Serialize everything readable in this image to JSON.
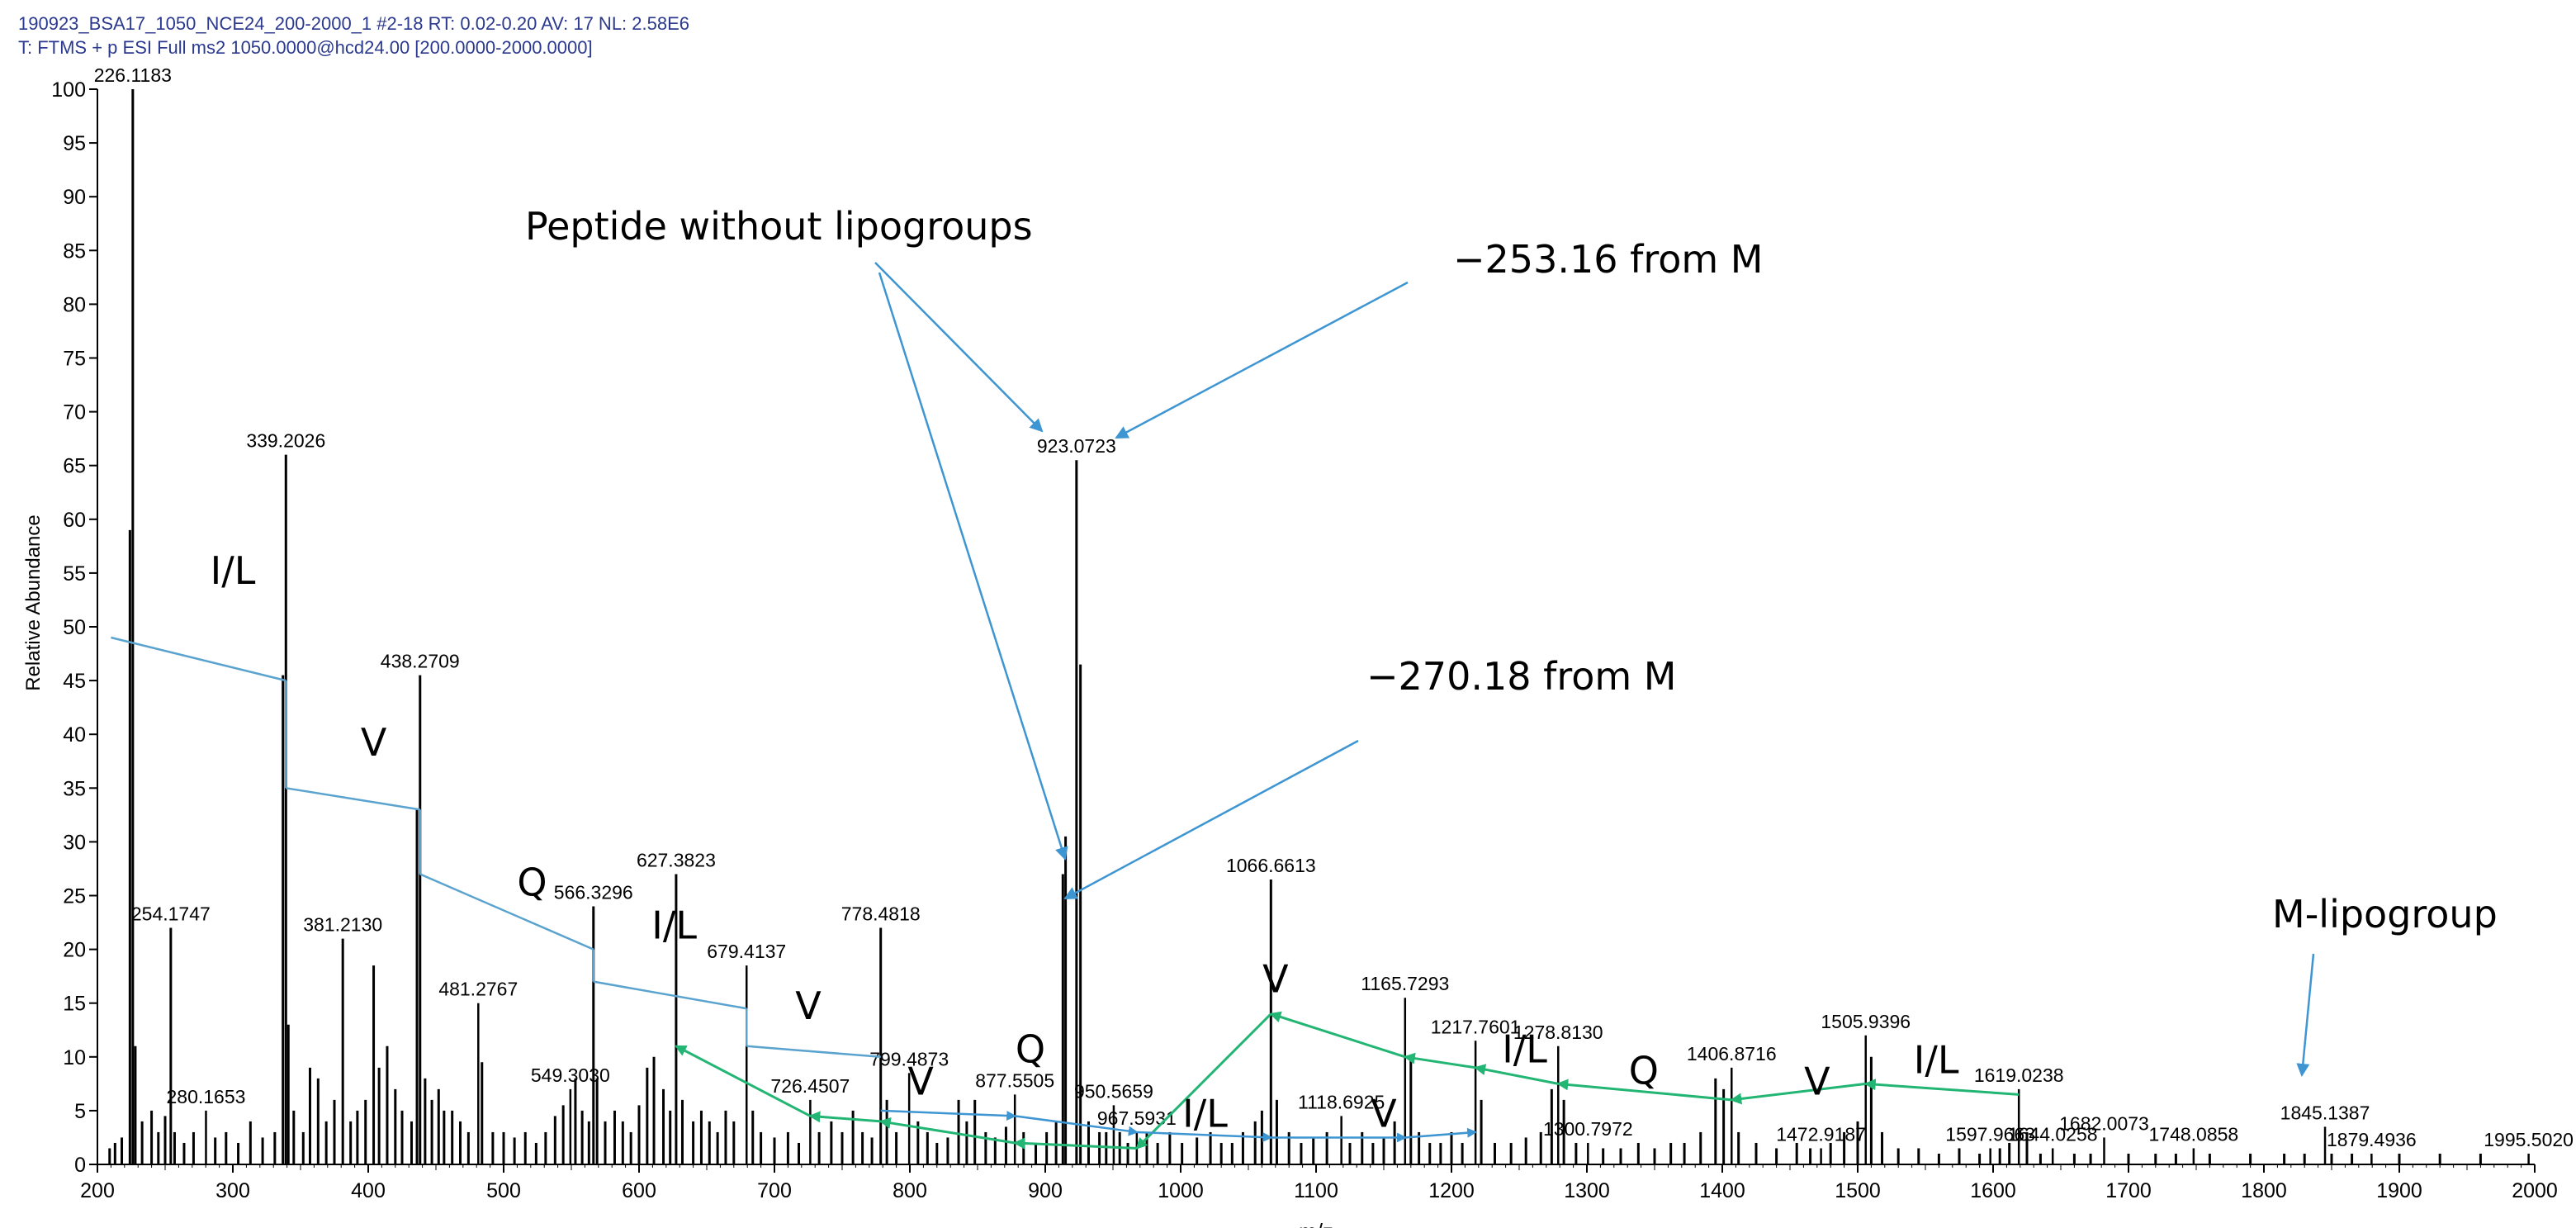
{
  "header": {
    "line1": "190923_BSA17_1050_NCE24_200-2000_1 #2-18   RT: 0.02-0.20   AV: 17   NL: 2.58E6",
    "line2": "T: FTMS + p ESI Full ms2 1050.0000@hcd24.00 [200.0000-2000.0000]"
  },
  "colors": {
    "stick": "#000000",
    "blue_line": "#5ba3cf",
    "blue_arrow": "#3d95d2",
    "green_arrow": "#22b573",
    "header_text": "#2b3a8f"
  },
  "chart_data": {
    "type": "bar",
    "title": "",
    "xlabel": "m/z",
    "ylabel": "Relative Abundance",
    "xlim": [
      200,
      2000
    ],
    "ylim": [
      0,
      100
    ],
    "xticks": [
      "200",
      "300",
      "400",
      "500",
      "600",
      "700",
      "800",
      "900",
      "1000",
      "1100",
      "1200",
      "1300",
      "1400",
      "1500",
      "1600",
      "1700",
      "1800",
      "1900",
      "2000"
    ],
    "yticks": [
      "0",
      "5",
      "10",
      "15",
      "20",
      "25",
      "30",
      "35",
      "40",
      "45",
      "50",
      "55",
      "60",
      "65",
      "70",
      "75",
      "80",
      "85",
      "90",
      "95",
      "100"
    ],
    "labeled_peaks": [
      {
        "mz": 226.1183,
        "label": "226.1183",
        "y": 100
      },
      {
        "mz": 254.1747,
        "label": "254.1747",
        "y": 22
      },
      {
        "mz": 280.1653,
        "label": "280.1653",
        "y": 5
      },
      {
        "mz": 339.2026,
        "label": "339.2026",
        "y": 66
      },
      {
        "mz": 381.213,
        "label": "381.2130",
        "y": 21
      },
      {
        "mz": 438.2709,
        "label": "438.2709",
        "y": 45.5
      },
      {
        "mz": 481.2767,
        "label": "481.2767",
        "y": 15
      },
      {
        "mz": 549.303,
        "label": "549.3030",
        "y": 7
      },
      {
        "mz": 566.3296,
        "label": "566.3296",
        "y": 24
      },
      {
        "mz": 627.3823,
        "label": "627.3823",
        "y": 27
      },
      {
        "mz": 679.4137,
        "label": "679.4137",
        "y": 18.5
      },
      {
        "mz": 726.4507,
        "label": "726.4507",
        "y": 6
      },
      {
        "mz": 778.4818,
        "label": "778.4818",
        "y": 22
      },
      {
        "mz": 799.4873,
        "label": "799.4873",
        "y": 8.5
      },
      {
        "mz": 877.5505,
        "label": "877.5505",
        "y": 6.5
      },
      {
        "mz": 923.0723,
        "label": "923.0723",
        "y": 65.5
      },
      {
        "mz": 950.5659,
        "label": "950.5659",
        "y": 5.5
      },
      {
        "mz": 967.5931,
        "label": "967.5931",
        "y": 3
      },
      {
        "mz": 1066.6613,
        "label": "1066.6613",
        "y": 26.5
      },
      {
        "mz": 1118.6925,
        "label": "1118.6925",
        "y": 4.5
      },
      {
        "mz": 1165.7293,
        "label": "1165.7293",
        "y": 15.5
      },
      {
        "mz": 1217.7601,
        "label": "1217.7601",
        "y": 11.5
      },
      {
        "mz": 1278.813,
        "label": "1278.8130",
        "y": 11
      },
      {
        "mz": 1300.7972,
        "label": "1300.7972",
        "y": 2
      },
      {
        "mz": 1406.8716,
        "label": "1406.8716",
        "y": 9
      },
      {
        "mz": 1472.9187,
        "label": "1472.9187",
        "y": 1.5
      },
      {
        "mz": 1505.9396,
        "label": "1505.9396",
        "y": 12
      },
      {
        "mz": 1597.9663,
        "label": "1597.9663",
        "y": 1.5
      },
      {
        "mz": 1619.0238,
        "label": "1619.0238",
        "y": 7
      },
      {
        "mz": 1644.0258,
        "label": "1644.0258",
        "y": 1.5
      },
      {
        "mz": 1682.0073,
        "label": "1682.0073",
        "y": 2.5
      },
      {
        "mz": 1748.0858,
        "label": "1748.0858",
        "y": 1.5
      },
      {
        "mz": 1845.1387,
        "label": "1845.1387",
        "y": 3.5
      },
      {
        "mz": 1879.4936,
        "label": "1879.4936",
        "y": 1
      },
      {
        "mz": 1995.502,
        "label": "1995.5020",
        "y": 1
      }
    ],
    "unlabeled_peaks": [
      {
        "mz": 209,
        "y": 1.5
      },
      {
        "mz": 213,
        "y": 2
      },
      {
        "mz": 218,
        "y": 2.5
      },
      {
        "mz": 224,
        "y": 59
      },
      {
        "mz": 228,
        "y": 11
      },
      {
        "mz": 233,
        "y": 4
      },
      {
        "mz": 240,
        "y": 5
      },
      {
        "mz": 245,
        "y": 3
      },
      {
        "mz": 250,
        "y": 4.5
      },
      {
        "mz": 257,
        "y": 3
      },
      {
        "mz": 264,
        "y": 2
      },
      {
        "mz": 271,
        "y": 3
      },
      {
        "mz": 287,
        "y": 2.5
      },
      {
        "mz": 295,
        "y": 3
      },
      {
        "mz": 304,
        "y": 2
      },
      {
        "mz": 313,
        "y": 4
      },
      {
        "mz": 322,
        "y": 2.5
      },
      {
        "mz": 331,
        "y": 3
      },
      {
        "mz": 337,
        "y": 45.5
      },
      {
        "mz": 341,
        "y": 13
      },
      {
        "mz": 345,
        "y": 5
      },
      {
        "mz": 352,
        "y": 3
      },
      {
        "mz": 357,
        "y": 9
      },
      {
        "mz": 363,
        "y": 8
      },
      {
        "mz": 369,
        "y": 4
      },
      {
        "mz": 375,
        "y": 6
      },
      {
        "mz": 387,
        "y": 4
      },
      {
        "mz": 392,
        "y": 5
      },
      {
        "mz": 398,
        "y": 6
      },
      {
        "mz": 404,
        "y": 18.5
      },
      {
        "mz": 408,
        "y": 9
      },
      {
        "mz": 414,
        "y": 11
      },
      {
        "mz": 420,
        "y": 7
      },
      {
        "mz": 425,
        "y": 5
      },
      {
        "mz": 432,
        "y": 4
      },
      {
        "mz": 436,
        "y": 33
      },
      {
        "mz": 442,
        "y": 8
      },
      {
        "mz": 447,
        "y": 6
      },
      {
        "mz": 452,
        "y": 7
      },
      {
        "mz": 456,
        "y": 5
      },
      {
        "mz": 462,
        "y": 5
      },
      {
        "mz": 468,
        "y": 4
      },
      {
        "mz": 474,
        "y": 3
      },
      {
        "mz": 484,
        "y": 9.5
      },
      {
        "mz": 492,
        "y": 3
      },
      {
        "mz": 500,
        "y": 3
      },
      {
        "mz": 508,
        "y": 2.5
      },
      {
        "mz": 516,
        "y": 3
      },
      {
        "mz": 524,
        "y": 2
      },
      {
        "mz": 531,
        "y": 3
      },
      {
        "mz": 538,
        "y": 4.5
      },
      {
        "mz": 544,
        "y": 5.5
      },
      {
        "mz": 553,
        "y": 8
      },
      {
        "mz": 558,
        "y": 5
      },
      {
        "mz": 563,
        "y": 4
      },
      {
        "mz": 569,
        "y": 8
      },
      {
        "mz": 575,
        "y": 4
      },
      {
        "mz": 582,
        "y": 5
      },
      {
        "mz": 588,
        "y": 4
      },
      {
        "mz": 594,
        "y": 3
      },
      {
        "mz": 600,
        "y": 5.5
      },
      {
        "mz": 606,
        "y": 9
      },
      {
        "mz": 611,
        "y": 10
      },
      {
        "mz": 618,
        "y": 7
      },
      {
        "mz": 623,
        "y": 5
      },
      {
        "mz": 632,
        "y": 6
      },
      {
        "mz": 640,
        "y": 4
      },
      {
        "mz": 646,
        "y": 5
      },
      {
        "mz": 652,
        "y": 4
      },
      {
        "mz": 658,
        "y": 3
      },
      {
        "mz": 664,
        "y": 5
      },
      {
        "mz": 670,
        "y": 4
      },
      {
        "mz": 684,
        "y": 5
      },
      {
        "mz": 690,
        "y": 3
      },
      {
        "mz": 700,
        "y": 2.5
      },
      {
        "mz": 710,
        "y": 3
      },
      {
        "mz": 718,
        "y": 2
      },
      {
        "mz": 733,
        "y": 3
      },
      {
        "mz": 742,
        "y": 4
      },
      {
        "mz": 750,
        "y": 3
      },
      {
        "mz": 758,
        "y": 5
      },
      {
        "mz": 765,
        "y": 3
      },
      {
        "mz": 772,
        "y": 2.5
      },
      {
        "mz": 783,
        "y": 6
      },
      {
        "mz": 790,
        "y": 3
      },
      {
        "mz": 806,
        "y": 4
      },
      {
        "mz": 813,
        "y": 3
      },
      {
        "mz": 820,
        "y": 2
      },
      {
        "mz": 828,
        "y": 2.5
      },
      {
        "mz": 836,
        "y": 6
      },
      {
        "mz": 842,
        "y": 4
      },
      {
        "mz": 848,
        "y": 6
      },
      {
        "mz": 856,
        "y": 3
      },
      {
        "mz": 863,
        "y": 2.5
      },
      {
        "mz": 871,
        "y": 3.5
      },
      {
        "mz": 884,
        "y": 3
      },
      {
        "mz": 893,
        "y": 2
      },
      {
        "mz": 901,
        "y": 3
      },
      {
        "mz": 908,
        "y": 4
      },
      {
        "mz": 913,
        "y": 27
      },
      {
        "mz": 915,
        "y": 30.5
      },
      {
        "mz": 926,
        "y": 46.5
      },
      {
        "mz": 932,
        "y": 4
      },
      {
        "mz": 940,
        "y": 3
      },
      {
        "mz": 945,
        "y": 3
      },
      {
        "mz": 955,
        "y": 3
      },
      {
        "mz": 961,
        "y": 2
      },
      {
        "mz": 975,
        "y": 3
      },
      {
        "mz": 983,
        "y": 2
      },
      {
        "mz": 992,
        "y": 3
      },
      {
        "mz": 1001,
        "y": 2
      },
      {
        "mz": 1012,
        "y": 2.5
      },
      {
        "mz": 1022,
        "y": 3
      },
      {
        "mz": 1030,
        "y": 2
      },
      {
        "mz": 1038,
        "y": 2
      },
      {
        "mz": 1046,
        "y": 3
      },
      {
        "mz": 1055,
        "y": 4
      },
      {
        "mz": 1060,
        "y": 5
      },
      {
        "mz": 1071,
        "y": 6
      },
      {
        "mz": 1080,
        "y": 3
      },
      {
        "mz": 1089,
        "y": 2
      },
      {
        "mz": 1098,
        "y": 2.5
      },
      {
        "mz": 1108,
        "y": 3
      },
      {
        "mz": 1125,
        "y": 2
      },
      {
        "mz": 1134,
        "y": 3
      },
      {
        "mz": 1142,
        "y": 2
      },
      {
        "mz": 1150,
        "y": 2.5
      },
      {
        "mz": 1158,
        "y": 4
      },
      {
        "mz": 1170,
        "y": 10
      },
      {
        "mz": 1176,
        "y": 3
      },
      {
        "mz": 1184,
        "y": 2
      },
      {
        "mz": 1192,
        "y": 2
      },
      {
        "mz": 1200,
        "y": 3
      },
      {
        "mz": 1208,
        "y": 2
      },
      {
        "mz": 1222,
        "y": 6
      },
      {
        "mz": 1232,
        "y": 2
      },
      {
        "mz": 1244,
        "y": 2
      },
      {
        "mz": 1255,
        "y": 2.5
      },
      {
        "mz": 1266,
        "y": 3
      },
      {
        "mz": 1274,
        "y": 7
      },
      {
        "mz": 1283,
        "y": 6
      },
      {
        "mz": 1292,
        "y": 2
      },
      {
        "mz": 1312,
        "y": 1.5
      },
      {
        "mz": 1325,
        "y": 1.5
      },
      {
        "mz": 1338,
        "y": 2
      },
      {
        "mz": 1350,
        "y": 1.5
      },
      {
        "mz": 1362,
        "y": 2
      },
      {
        "mz": 1372,
        "y": 2
      },
      {
        "mz": 1384,
        "y": 3
      },
      {
        "mz": 1395,
        "y": 8
      },
      {
        "mz": 1401,
        "y": 7
      },
      {
        "mz": 1412,
        "y": 3
      },
      {
        "mz": 1425,
        "y": 2
      },
      {
        "mz": 1440,
        "y": 1.5
      },
      {
        "mz": 1455,
        "y": 2
      },
      {
        "mz": 1465,
        "y": 1.5
      },
      {
        "mz": 1480,
        "y": 2
      },
      {
        "mz": 1490,
        "y": 3
      },
      {
        "mz": 1500,
        "y": 4
      },
      {
        "mz": 1510,
        "y": 10
      },
      {
        "mz": 1518,
        "y": 3
      },
      {
        "mz": 1530,
        "y": 1.5
      },
      {
        "mz": 1545,
        "y": 1.5
      },
      {
        "mz": 1560,
        "y": 1
      },
      {
        "mz": 1575,
        "y": 1.5
      },
      {
        "mz": 1590,
        "y": 1
      },
      {
        "mz": 1605,
        "y": 1.5
      },
      {
        "mz": 1612,
        "y": 2
      },
      {
        "mz": 1625,
        "y": 3
      },
      {
        "mz": 1635,
        "y": 1
      },
      {
        "mz": 1660,
        "y": 1
      },
      {
        "mz": 1672,
        "y": 1
      },
      {
        "mz": 1700,
        "y": 1
      },
      {
        "mz": 1720,
        "y": 1
      },
      {
        "mz": 1735,
        "y": 1
      },
      {
        "mz": 1760,
        "y": 1
      },
      {
        "mz": 1790,
        "y": 1
      },
      {
        "mz": 1815,
        "y": 1
      },
      {
        "mz": 1830,
        "y": 1
      },
      {
        "mz": 1850,
        "y": 1
      },
      {
        "mz": 1865,
        "y": 1
      },
      {
        "mz": 1900,
        "y": 1
      },
      {
        "mz": 1930,
        "y": 1
      },
      {
        "mz": 1960,
        "y": 1
      }
    ],
    "annotations": [
      {
        "text": "Peptide without lipogroups"
      },
      {
        "text": "−253.16 from M"
      },
      {
        "text": "−270.18 from M"
      },
      {
        "text": "M-lipogroup"
      }
    ],
    "residue_labels": [
      {
        "text": "I/L",
        "x": 300,
        "y": 54
      },
      {
        "text": "V",
        "x": 404,
        "y": 38
      },
      {
        "text": "Q",
        "x": 521,
        "y": 25
      },
      {
        "text": "I/L",
        "x": 626,
        "y": 21
      },
      {
        "text": "V",
        "x": 725,
        "y": 13.5
      },
      {
        "text": "V",
        "x": 808,
        "y": 6.5
      },
      {
        "text": "Q",
        "x": 889,
        "y": 9.5
      },
      {
        "text": "I/L",
        "x": 1018,
        "y": 3.5
      },
      {
        "text": "V",
        "x": 1070,
        "y": 16
      },
      {
        "text": "V",
        "x": 1150,
        "y": 3.5
      },
      {
        "text": "I/L",
        "x": 1254,
        "y": 9.5
      },
      {
        "text": "Q",
        "x": 1342,
        "y": 7.5
      },
      {
        "text": "V",
        "x": 1470,
        "y": 6.5
      },
      {
        "text": "I/L",
        "x": 1558,
        "y": 8.5
      }
    ],
    "b_ion_series": [
      [
        210,
        49
      ],
      [
        339.2026,
        45
      ],
      [
        339.2026,
        35
      ],
      [
        438.2709,
        33
      ],
      [
        438.2709,
        27
      ],
      [
        566.3296,
        20
      ],
      [
        566.3296,
        17
      ],
      [
        679.4137,
        14.5
      ],
      [
        679.4137,
        11
      ],
      [
        778.4818,
        10
      ]
    ],
    "y_ion_series": [
      [
        1619.0238,
        6.5
      ],
      [
        1505.9396,
        7.5
      ],
      [
        1406.8716,
        6
      ],
      [
        1278.813,
        7.5
      ],
      [
        1217.7601,
        9
      ],
      [
        1165.7293,
        10
      ],
      [
        1066.6613,
        14
      ],
      [
        967.5931,
        1.5
      ],
      [
        877.5505,
        2
      ],
      [
        778.4818,
        4
      ],
      [
        726.4507,
        4.5
      ],
      [
        627.3823,
        11
      ]
    ],
    "blue_series": [
      [
        778.4818,
        5
      ],
      [
        877.5505,
        4.5
      ],
      [
        967.5931,
        3
      ],
      [
        1066.6613,
        2.5
      ],
      [
        1165.7293,
        2.5
      ],
      [
        1217.7601,
        3
      ]
    ]
  }
}
